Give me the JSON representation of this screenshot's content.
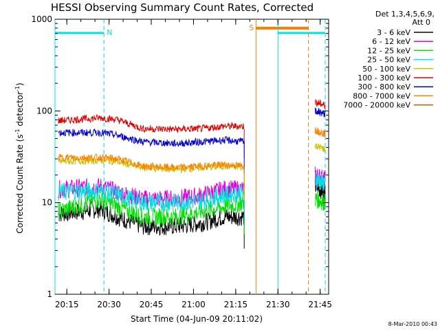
{
  "chart_data": {
    "type": "line",
    "title": "HESSI Observing Summary Count Rates, Corrected",
    "xlabel": "Start Time (04-Jun-09 20:11:02)",
    "ylabel_main": "Corrected Count Rate (s",
    "ylabel_sup1": "-1",
    "ylabel_mid": " detector",
    "ylabel_sup2": "-1",
    "ylabel_end": ")",
    "yscale": "log",
    "ylim": [
      1,
      1000
    ],
    "xlim_minutes": [
      20.18,
      21.8
    ],
    "x_ticks": [
      {
        "t": 20.25,
        "label": "20:15"
      },
      {
        "t": 20.5,
        "label": "20:30"
      },
      {
        "t": 20.75,
        "label": "20:45"
      },
      {
        "t": 21.0,
        "label": "21:00"
      },
      {
        "t": 21.25,
        "label": "21:15"
      },
      {
        "t": 21.5,
        "label": "21:30"
      },
      {
        "t": 21.75,
        "label": "21:45"
      }
    ],
    "y_ticks": [
      {
        "v": 1,
        "label": "1"
      },
      {
        "v": 10,
        "label": "10"
      },
      {
        "v": 100,
        "label": "100"
      },
      {
        "v": 1000,
        "label": "1000"
      }
    ],
    "grid": false,
    "legend_header": [
      "Det 1,3,4,5,6,9,",
      "Att 0"
    ],
    "legend_position": "right",
    "series": [
      {
        "name": "3 - 6 keV",
        "color": "#000000",
        "seg1": [
          [
            20.2,
            7.5
          ],
          [
            20.45,
            8.5
          ],
          [
            20.55,
            7
          ],
          [
            20.7,
            5.5
          ],
          [
            20.9,
            5.5
          ],
          [
            21.05,
            6
          ],
          [
            21.18,
            7
          ],
          [
            21.3,
            7
          ]
        ],
        "seg2": [
          [
            21.72,
            15
          ],
          [
            21.78,
            13
          ]
        ]
      },
      {
        "name": "6 - 12 keV",
        "color": "#e000e0",
        "seg1": [
          [
            20.2,
            14
          ],
          [
            20.45,
            15
          ],
          [
            20.55,
            13
          ],
          [
            20.7,
            11
          ],
          [
            20.9,
            11
          ],
          [
            21.05,
            12
          ],
          [
            21.18,
            14
          ],
          [
            21.3,
            14
          ]
        ],
        "seg2": [
          [
            21.72,
            20
          ],
          [
            21.78,
            18
          ]
        ]
      },
      {
        "name": "12 - 25 keV",
        "color": "#00e000",
        "seg1": [
          [
            20.2,
            8
          ],
          [
            20.45,
            11
          ],
          [
            20.55,
            9
          ],
          [
            20.7,
            7
          ],
          [
            20.9,
            7
          ],
          [
            21.05,
            8
          ],
          [
            21.18,
            9
          ],
          [
            21.3,
            10
          ]
        ],
        "seg2": [
          [
            21.72,
            11
          ],
          [
            21.78,
            10
          ]
        ]
      },
      {
        "name": "25 - 50 keV",
        "color": "#00e0e0",
        "seg1": [
          [
            20.2,
            13
          ],
          [
            20.45,
            13.5
          ],
          [
            20.55,
            12
          ],
          [
            20.7,
            10
          ],
          [
            20.9,
            10
          ],
          [
            21.05,
            10.5
          ],
          [
            21.18,
            12
          ],
          [
            21.3,
            13
          ]
        ],
        "seg2": [
          [
            21.72,
            18
          ],
          [
            21.78,
            16
          ]
        ]
      },
      {
        "name": "50 - 100 keV",
        "color": "#d0c000",
        "seg1": [
          [
            20.2,
            28
          ],
          [
            20.45,
            29
          ],
          [
            20.55,
            28
          ],
          [
            20.7,
            24
          ],
          [
            20.9,
            23
          ],
          [
            21.05,
            24
          ],
          [
            21.18,
            25
          ],
          [
            21.3,
            24
          ]
        ],
        "seg2": [
          [
            21.72,
            42
          ],
          [
            21.78,
            38
          ]
        ]
      },
      {
        "name": "100 - 300 keV",
        "color": "#e00000",
        "seg1": [
          [
            20.2,
            78
          ],
          [
            20.45,
            84
          ],
          [
            20.55,
            80
          ],
          [
            20.7,
            64
          ],
          [
            20.9,
            63
          ],
          [
            21.05,
            64
          ],
          [
            21.18,
            68
          ],
          [
            21.3,
            68
          ]
        ],
        "seg2": [
          [
            21.72,
            125
          ],
          [
            21.78,
            115
          ]
        ]
      },
      {
        "name": "300 - 800 keV",
        "color": "#0000d0",
        "seg1": [
          [
            20.2,
            58
          ],
          [
            20.45,
            58
          ],
          [
            20.55,
            54
          ],
          [
            20.7,
            46
          ],
          [
            20.9,
            44
          ],
          [
            21.05,
            46
          ],
          [
            21.18,
            48
          ],
          [
            21.3,
            46
          ]
        ],
        "seg2": [
          [
            21.72,
            100
          ],
          [
            21.78,
            92
          ]
        ]
      },
      {
        "name": "800 - 7000 keV",
        "color": "#ff8000",
        "seg1": [
          [
            20.2,
            31
          ],
          [
            20.45,
            31
          ],
          [
            20.55,
            30
          ],
          [
            20.7,
            25
          ],
          [
            20.9,
            24
          ],
          [
            21.05,
            25
          ],
          [
            21.18,
            26
          ],
          [
            21.3,
            25
          ]
        ],
        "seg2": [
          [
            21.72,
            62
          ],
          [
            21.78,
            56
          ]
        ]
      },
      {
        "name": "7000 - 20000 keV",
        "color": "#a06000",
        "seg1": [],
        "seg2": []
      }
    ],
    "annotations": {
      "night_bar": {
        "label": "N",
        "color": "#00e0e0"
      },
      "saa_bar": {
        "label": "S",
        "color": "#ff8000"
      }
    },
    "footer_date": "8-Mar-2010 00:43"
  }
}
